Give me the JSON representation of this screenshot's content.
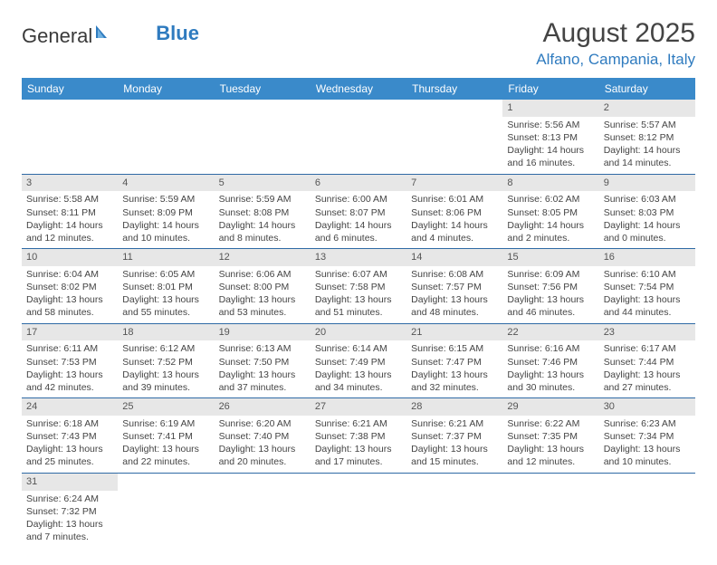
{
  "logo": {
    "text1": "General",
    "text2": "Blue"
  },
  "title": "August 2025",
  "location": "Alfano, Campania, Italy",
  "colors": {
    "header_bg": "#3a8aca",
    "header_text": "#ffffff",
    "daynum_bg": "#e7e7e7",
    "row_border": "#2f6aa5",
    "accent": "#2f7bbf"
  },
  "day_headers": [
    "Sunday",
    "Monday",
    "Tuesday",
    "Wednesday",
    "Thursday",
    "Friday",
    "Saturday"
  ],
  "weeks": [
    [
      null,
      null,
      null,
      null,
      null,
      {
        "n": "1",
        "sunrise": "Sunrise: 5:56 AM",
        "sunset": "Sunset: 8:13 PM",
        "daylight": "Daylight: 14 hours and 16 minutes."
      },
      {
        "n": "2",
        "sunrise": "Sunrise: 5:57 AM",
        "sunset": "Sunset: 8:12 PM",
        "daylight": "Daylight: 14 hours and 14 minutes."
      }
    ],
    [
      {
        "n": "3",
        "sunrise": "Sunrise: 5:58 AM",
        "sunset": "Sunset: 8:11 PM",
        "daylight": "Daylight: 14 hours and 12 minutes."
      },
      {
        "n": "4",
        "sunrise": "Sunrise: 5:59 AM",
        "sunset": "Sunset: 8:09 PM",
        "daylight": "Daylight: 14 hours and 10 minutes."
      },
      {
        "n": "5",
        "sunrise": "Sunrise: 5:59 AM",
        "sunset": "Sunset: 8:08 PM",
        "daylight": "Daylight: 14 hours and 8 minutes."
      },
      {
        "n": "6",
        "sunrise": "Sunrise: 6:00 AM",
        "sunset": "Sunset: 8:07 PM",
        "daylight": "Daylight: 14 hours and 6 minutes."
      },
      {
        "n": "7",
        "sunrise": "Sunrise: 6:01 AM",
        "sunset": "Sunset: 8:06 PM",
        "daylight": "Daylight: 14 hours and 4 minutes."
      },
      {
        "n": "8",
        "sunrise": "Sunrise: 6:02 AM",
        "sunset": "Sunset: 8:05 PM",
        "daylight": "Daylight: 14 hours and 2 minutes."
      },
      {
        "n": "9",
        "sunrise": "Sunrise: 6:03 AM",
        "sunset": "Sunset: 8:03 PM",
        "daylight": "Daylight: 14 hours and 0 minutes."
      }
    ],
    [
      {
        "n": "10",
        "sunrise": "Sunrise: 6:04 AM",
        "sunset": "Sunset: 8:02 PM",
        "daylight": "Daylight: 13 hours and 58 minutes."
      },
      {
        "n": "11",
        "sunrise": "Sunrise: 6:05 AM",
        "sunset": "Sunset: 8:01 PM",
        "daylight": "Daylight: 13 hours and 55 minutes."
      },
      {
        "n": "12",
        "sunrise": "Sunrise: 6:06 AM",
        "sunset": "Sunset: 8:00 PM",
        "daylight": "Daylight: 13 hours and 53 minutes."
      },
      {
        "n": "13",
        "sunrise": "Sunrise: 6:07 AM",
        "sunset": "Sunset: 7:58 PM",
        "daylight": "Daylight: 13 hours and 51 minutes."
      },
      {
        "n": "14",
        "sunrise": "Sunrise: 6:08 AM",
        "sunset": "Sunset: 7:57 PM",
        "daylight": "Daylight: 13 hours and 48 minutes."
      },
      {
        "n": "15",
        "sunrise": "Sunrise: 6:09 AM",
        "sunset": "Sunset: 7:56 PM",
        "daylight": "Daylight: 13 hours and 46 minutes."
      },
      {
        "n": "16",
        "sunrise": "Sunrise: 6:10 AM",
        "sunset": "Sunset: 7:54 PM",
        "daylight": "Daylight: 13 hours and 44 minutes."
      }
    ],
    [
      {
        "n": "17",
        "sunrise": "Sunrise: 6:11 AM",
        "sunset": "Sunset: 7:53 PM",
        "daylight": "Daylight: 13 hours and 42 minutes."
      },
      {
        "n": "18",
        "sunrise": "Sunrise: 6:12 AM",
        "sunset": "Sunset: 7:52 PM",
        "daylight": "Daylight: 13 hours and 39 minutes."
      },
      {
        "n": "19",
        "sunrise": "Sunrise: 6:13 AM",
        "sunset": "Sunset: 7:50 PM",
        "daylight": "Daylight: 13 hours and 37 minutes."
      },
      {
        "n": "20",
        "sunrise": "Sunrise: 6:14 AM",
        "sunset": "Sunset: 7:49 PM",
        "daylight": "Daylight: 13 hours and 34 minutes."
      },
      {
        "n": "21",
        "sunrise": "Sunrise: 6:15 AM",
        "sunset": "Sunset: 7:47 PM",
        "daylight": "Daylight: 13 hours and 32 minutes."
      },
      {
        "n": "22",
        "sunrise": "Sunrise: 6:16 AM",
        "sunset": "Sunset: 7:46 PM",
        "daylight": "Daylight: 13 hours and 30 minutes."
      },
      {
        "n": "23",
        "sunrise": "Sunrise: 6:17 AM",
        "sunset": "Sunset: 7:44 PM",
        "daylight": "Daylight: 13 hours and 27 minutes."
      }
    ],
    [
      {
        "n": "24",
        "sunrise": "Sunrise: 6:18 AM",
        "sunset": "Sunset: 7:43 PM",
        "daylight": "Daylight: 13 hours and 25 minutes."
      },
      {
        "n": "25",
        "sunrise": "Sunrise: 6:19 AM",
        "sunset": "Sunset: 7:41 PM",
        "daylight": "Daylight: 13 hours and 22 minutes."
      },
      {
        "n": "26",
        "sunrise": "Sunrise: 6:20 AM",
        "sunset": "Sunset: 7:40 PM",
        "daylight": "Daylight: 13 hours and 20 minutes."
      },
      {
        "n": "27",
        "sunrise": "Sunrise: 6:21 AM",
        "sunset": "Sunset: 7:38 PM",
        "daylight": "Daylight: 13 hours and 17 minutes."
      },
      {
        "n": "28",
        "sunrise": "Sunrise: 6:21 AM",
        "sunset": "Sunset: 7:37 PM",
        "daylight": "Daylight: 13 hours and 15 minutes."
      },
      {
        "n": "29",
        "sunrise": "Sunrise: 6:22 AM",
        "sunset": "Sunset: 7:35 PM",
        "daylight": "Daylight: 13 hours and 12 minutes."
      },
      {
        "n": "30",
        "sunrise": "Sunrise: 6:23 AM",
        "sunset": "Sunset: 7:34 PM",
        "daylight": "Daylight: 13 hours and 10 minutes."
      }
    ],
    [
      {
        "n": "31",
        "sunrise": "Sunrise: 6:24 AM",
        "sunset": "Sunset: 7:32 PM",
        "daylight": "Daylight: 13 hours and 7 minutes."
      },
      null,
      null,
      null,
      null,
      null,
      null
    ]
  ]
}
